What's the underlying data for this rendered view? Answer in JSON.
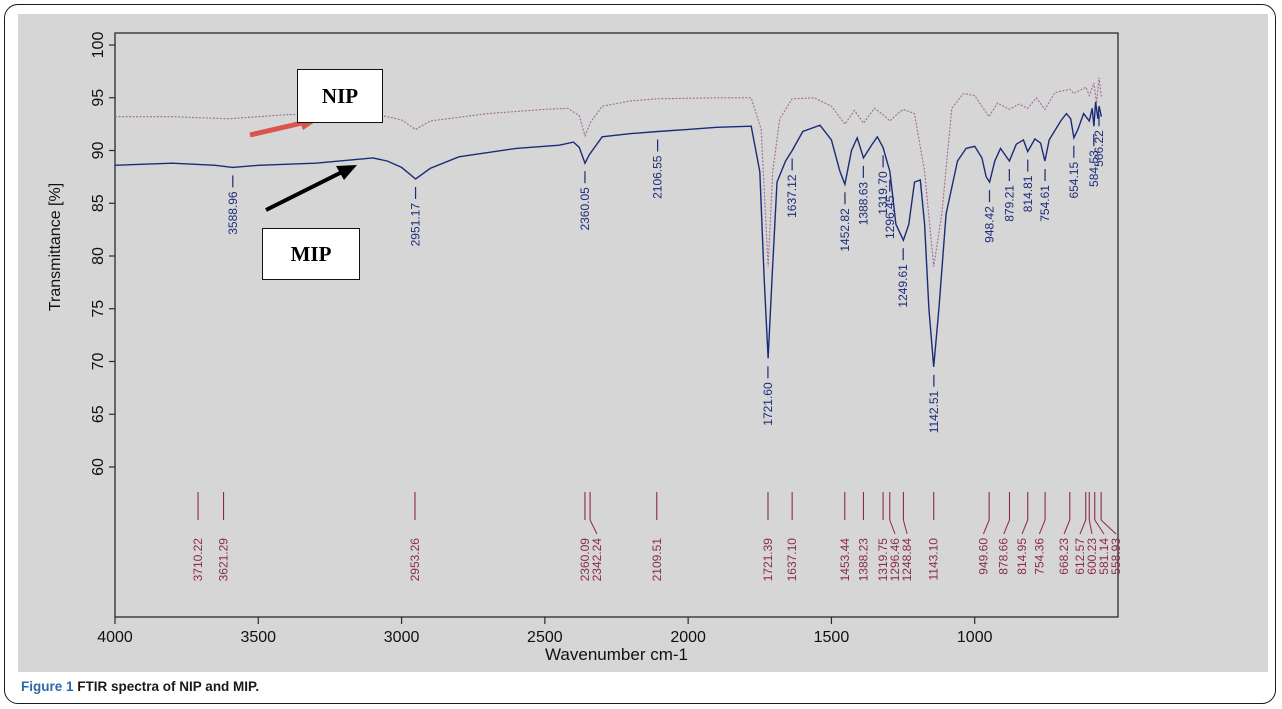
{
  "chart_data": {
    "type": "line",
    "title": "",
    "xlabel": "Wavenumber cm-1",
    "ylabel": "Transmittance [%]",
    "xlim": [
      4000,
      500
    ],
    "ylim": [
      55,
      100
    ],
    "x_ticks": [
      "4000",
      "3500",
      "3000",
      "2500",
      "2000",
      "1500",
      "1000"
    ],
    "y_ticks": [
      "60",
      "65",
      "70",
      "75",
      "80",
      "85",
      "90",
      "95",
      "100"
    ],
    "series": [
      {
        "name": "NIP",
        "color": "#a06a9a",
        "points": [
          [
            4000,
            93.2
          ],
          [
            3800,
            93.2
          ],
          [
            3600,
            93.0
          ],
          [
            3400,
            93.4
          ],
          [
            3100,
            93.5
          ],
          [
            3000,
            92.9
          ],
          [
            2951,
            92.0
          ],
          [
            2900,
            92.8
          ],
          [
            2700,
            93.5
          ],
          [
            2500,
            93.9
          ],
          [
            2420,
            94.0
          ],
          [
            2380,
            93.3
          ],
          [
            2360,
            91.4
          ],
          [
            2340,
            92.7
          ],
          [
            2300,
            94.2
          ],
          [
            2200,
            94.7
          ],
          [
            2109,
            94.9
          ],
          [
            1900,
            95.0
          ],
          [
            1780,
            95.0
          ],
          [
            1745,
            92.0
          ],
          [
            1721,
            79.0
          ],
          [
            1705,
            88.0
          ],
          [
            1680,
            93.0
          ],
          [
            1637,
            94.9
          ],
          [
            1560,
            95.0
          ],
          [
            1500,
            94.2
          ],
          [
            1453,
            92.5
          ],
          [
            1420,
            93.8
          ],
          [
            1388,
            92.6
          ],
          [
            1350,
            94.0
          ],
          [
            1320,
            93.4
          ],
          [
            1296,
            92.8
          ],
          [
            1265,
            93.6
          ],
          [
            1249,
            93.9
          ],
          [
            1210,
            93.5
          ],
          [
            1175,
            88.0
          ],
          [
            1143,
            79.0
          ],
          [
            1115,
            84.0
          ],
          [
            1080,
            94.0
          ],
          [
            1040,
            95.4
          ],
          [
            1000,
            95.2
          ],
          [
            970,
            94.0
          ],
          [
            950,
            93.2
          ],
          [
            920,
            94.5
          ],
          [
            879,
            93.9
          ],
          [
            845,
            94.4
          ],
          [
            815,
            94.0
          ],
          [
            785,
            95.0
          ],
          [
            755,
            93.9
          ],
          [
            720,
            95.5
          ],
          [
            668,
            95.8
          ],
          [
            654,
            95.4
          ],
          [
            612,
            96.0
          ],
          [
            600,
            95.2
          ],
          [
            584,
            96.4
          ],
          [
            575,
            94.5
          ],
          [
            566,
            96.9
          ],
          [
            558,
            95.0
          ]
        ]
      },
      {
        "name": "MIP",
        "color": "#1c2b78",
        "points": [
          [
            4000,
            88.6
          ],
          [
            3800,
            88.8
          ],
          [
            3650,
            88.6
          ],
          [
            3589,
            88.4
          ],
          [
            3500,
            88.6
          ],
          [
            3300,
            88.8
          ],
          [
            3100,
            89.3
          ],
          [
            3050,
            89.0
          ],
          [
            3000,
            88.4
          ],
          [
            2951,
            87.3
          ],
          [
            2900,
            88.3
          ],
          [
            2800,
            89.4
          ],
          [
            2600,
            90.2
          ],
          [
            2450,
            90.5
          ],
          [
            2400,
            90.8
          ],
          [
            2380,
            90.3
          ],
          [
            2360,
            88.8
          ],
          [
            2345,
            89.6
          ],
          [
            2300,
            91.3
          ],
          [
            2200,
            91.6
          ],
          [
            2106,
            91.8
          ],
          [
            2000,
            92.0
          ],
          [
            1900,
            92.2
          ],
          [
            1780,
            92.3
          ],
          [
            1750,
            88.0
          ],
          [
            1735,
            78.0
          ],
          [
            1721,
            70.3
          ],
          [
            1707,
            78.0
          ],
          [
            1690,
            87.0
          ],
          [
            1660,
            89.0
          ],
          [
            1637,
            90.0
          ],
          [
            1600,
            91.8
          ],
          [
            1540,
            92.4
          ],
          [
            1500,
            91.0
          ],
          [
            1470,
            88.0
          ],
          [
            1453,
            86.8
          ],
          [
            1430,
            90.0
          ],
          [
            1410,
            91.2
          ],
          [
            1388,
            89.3
          ],
          [
            1360,
            90.5
          ],
          [
            1340,
            91.3
          ],
          [
            1320,
            90.3
          ],
          [
            1296,
            88.0
          ],
          [
            1275,
            83.0
          ],
          [
            1249,
            81.5
          ],
          [
            1230,
            83.0
          ],
          [
            1210,
            87.0
          ],
          [
            1190,
            87.2
          ],
          [
            1175,
            83.0
          ],
          [
            1160,
            75.0
          ],
          [
            1143,
            69.5
          ],
          [
            1125,
            75.0
          ],
          [
            1100,
            84.0
          ],
          [
            1060,
            89.0
          ],
          [
            1030,
            90.2
          ],
          [
            1000,
            90.4
          ],
          [
            975,
            89.3
          ],
          [
            960,
            87.5
          ],
          [
            948,
            87.0
          ],
          [
            930,
            89.0
          ],
          [
            910,
            90.2
          ],
          [
            879,
            89.0
          ],
          [
            855,
            90.6
          ],
          [
            830,
            91.0
          ],
          [
            815,
            89.9
          ],
          [
            790,
            91.1
          ],
          [
            770,
            90.7
          ],
          [
            755,
            89.0
          ],
          [
            740,
            91.0
          ],
          [
            700,
            92.8
          ],
          [
            680,
            93.5
          ],
          [
            665,
            93.0
          ],
          [
            654,
            91.2
          ],
          [
            640,
            92.0
          ],
          [
            620,
            93.5
          ],
          [
            600,
            92.8
          ],
          [
            590,
            94.0
          ],
          [
            584,
            92.3
          ],
          [
            578,
            94.6
          ],
          [
            570,
            93.0
          ],
          [
            566,
            94.2
          ],
          [
            558,
            93.2
          ]
        ]
      }
    ],
    "mip_peak_labels": [
      {
        "x": 3588.96,
        "y": 88.4,
        "label": "3588.96"
      },
      {
        "x": 2951.17,
        "y": 87.3,
        "label": "2951.17"
      },
      {
        "x": 2360.05,
        "y": 88.8,
        "label": "2360.05"
      },
      {
        "x": 2106.55,
        "y": 91.8,
        "label": "2106.55"
      },
      {
        "x": 1721.6,
        "y": 70.3,
        "label": "1721.60"
      },
      {
        "x": 1637.12,
        "y": 90.0,
        "label": "1637.12"
      },
      {
        "x": 1452.82,
        "y": 86.8,
        "label": "1452.82"
      },
      {
        "x": 1388.63,
        "y": 89.3,
        "label": "1388.63"
      },
      {
        "x": 1319.7,
        "y": 90.3,
        "label": "1319.70"
      },
      {
        "x": 1296.45,
        "y": 88.0,
        "label": "1296.45"
      },
      {
        "x": 1249.61,
        "y": 81.5,
        "label": "1249.61"
      },
      {
        "x": 1142.51,
        "y": 69.5,
        "label": "1142.51"
      },
      {
        "x": 948.42,
        "y": 87.0,
        "label": "948.42"
      },
      {
        "x": 879.21,
        "y": 89.0,
        "label": "879.21"
      },
      {
        "x": 814.81,
        "y": 89.9,
        "label": "814.81"
      },
      {
        "x": 754.61,
        "y": 89.0,
        "label": "754.61"
      },
      {
        "x": 654.15,
        "y": 91.2,
        "label": "654.15"
      },
      {
        "x": 584.53,
        "y": 92.3,
        "label": "584.53"
      },
      {
        "x": 566.22,
        "y": 94.2,
        "label": "566.22"
      }
    ],
    "nip_peak_labels": [
      "3710.22",
      "3621.29",
      "2953.26",
      "2360.09",
      "2342.24",
      "2109.51",
      "1721.39",
      "1637.10",
      "1453.44",
      "1388.23",
      "1319.75",
      "1296.46",
      "1248.84",
      "1143.10",
      "949.60",
      "878.66",
      "814.95",
      "754.36",
      "668.23",
      "612.57",
      "600.23",
      "581.14",
      "558.93"
    ],
    "nip_peak_positions": [
      3710.22,
      3621.29,
      2953.26,
      2360.09,
      2342.24,
      2109.51,
      1721.39,
      1637.1,
      1453.44,
      1388.23,
      1319.75,
      1296.46,
      1248.84,
      1143.1,
      949.6,
      878.66,
      814.95,
      754.36,
      668.23,
      612.57,
      600.23,
      581.14,
      558.93
    ],
    "annotations": [
      {
        "text": "NIP",
        "arrow_color": "#d9534f"
      },
      {
        "text": "MIP",
        "arrow_color": "#000000"
      }
    ]
  },
  "caption": {
    "label": "Figure 1",
    "text": "FTIR spectra of NIP and MIP."
  }
}
